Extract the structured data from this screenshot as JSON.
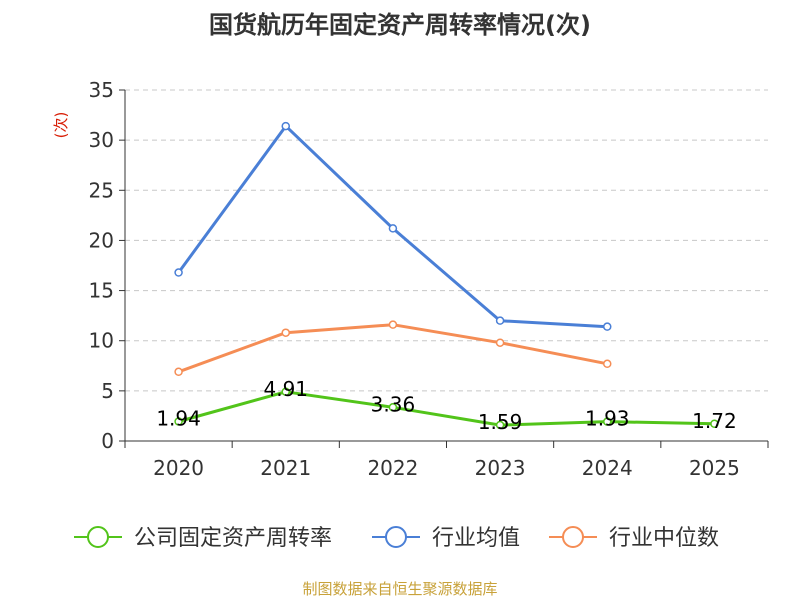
{
  "chart_data": {
    "type": "line",
    "title": "国货航历年固定资产周转率情况(次)",
    "ylabel": "(次)",
    "xlabel": "",
    "categories": [
      "2020",
      "2021",
      "2022",
      "2023",
      "2024",
      "2025"
    ],
    "ylim": [
      0,
      35
    ],
    "yticks": [
      0,
      5,
      10,
      15,
      20,
      25,
      30,
      35
    ],
    "grid": true,
    "legend_position": "bottom",
    "series": [
      {
        "name": "公司固定资产周转率",
        "color": "#52c41a",
        "values": [
          1.94,
          4.91,
          3.36,
          1.59,
          1.93,
          1.72
        ],
        "labels": [
          "1.94",
          "4.91",
          "3.36",
          "1.59",
          "1.93",
          "1.72"
        ]
      },
      {
        "name": "行业均值",
        "color": "#4a7fd6",
        "values": [
          16.8,
          31.4,
          21.2,
          12.0,
          11.4,
          null
        ]
      },
      {
        "name": "行业中位数",
        "color": "#f58d55",
        "values": [
          6.9,
          10.8,
          11.6,
          9.8,
          7.7,
          null
        ]
      }
    ]
  },
  "footer": {
    "source": "制图数据来自恒生聚源数据库"
  },
  "colors": {
    "axis": "#333333",
    "grid": "#c8c8c8",
    "ylabel": "#d81e06",
    "source": "#c8a23a"
  }
}
